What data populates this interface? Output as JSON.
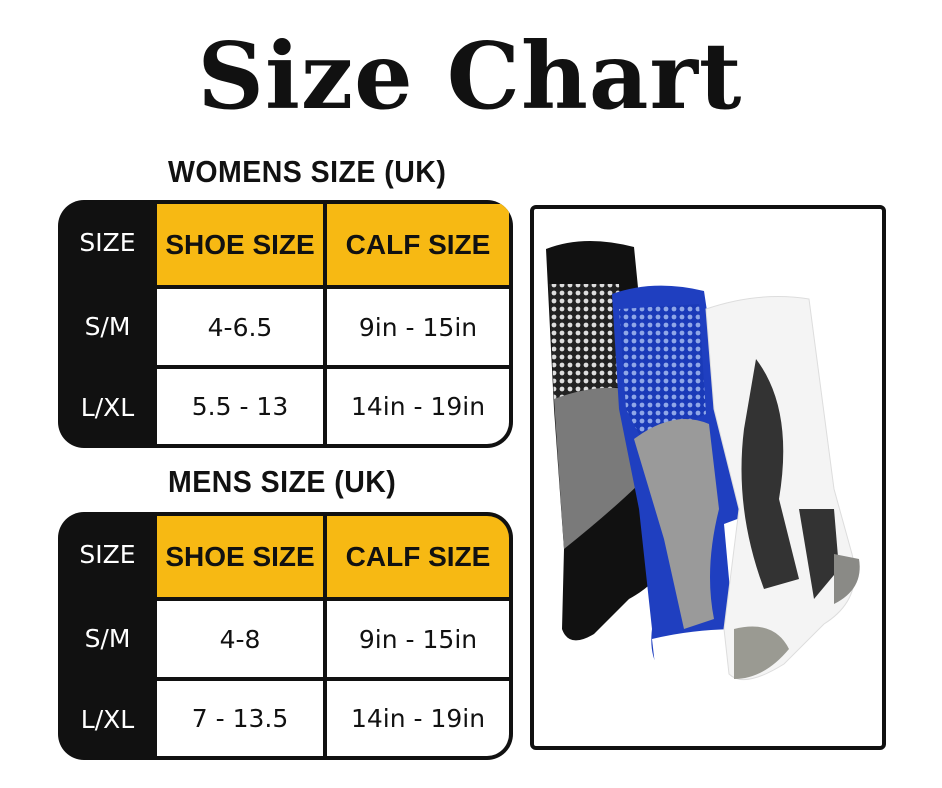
{
  "title": "Size Chart",
  "colors": {
    "header_bg": "#f7b913",
    "label_bg": "#111111"
  },
  "tables": [
    {
      "heading": "WOMENS SIZE (UK)",
      "columns": [
        "SIZE",
        "SHOE SIZE",
        "CALF SIZE"
      ],
      "rows": [
        {
          "size": "S/M",
          "shoe": "4-6.5",
          "calf": "9in - 15in"
        },
        {
          "size": "L/XL",
          "shoe": "5.5 - 13",
          "calf": "14in - 19in"
        }
      ]
    },
    {
      "heading": "MENS SIZE (UK)",
      "columns": [
        "SIZE",
        "SHOE SIZE",
        "CALF SIZE"
      ],
      "rows": [
        {
          "size": "S/M",
          "shoe": "4-8",
          "calf": "9in - 15in"
        },
        {
          "size": "L/XL",
          "shoe": "7 - 13.5",
          "calf": "14in - 19in"
        }
      ]
    }
  ],
  "product_image": {
    "sock_colors": [
      "#111111",
      "#1f3fc0",
      "#ffffff"
    ]
  }
}
